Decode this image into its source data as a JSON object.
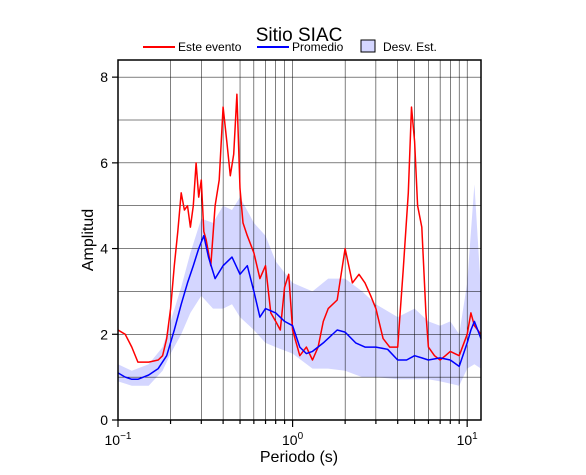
{
  "chart_data": {
    "type": "line",
    "title": "Sitio SIAC",
    "xlabel": "Periodo (s)",
    "ylabel": "Amplitud",
    "xscale": "log",
    "xlim": [
      0.1,
      12
    ],
    "ylim": [
      0,
      8.4
    ],
    "x_ticks": [
      {
        "value": 0.1,
        "base": "10",
        "exp": "−1"
      },
      {
        "value": 1,
        "base": "10",
        "exp": "0"
      },
      {
        "value": 10,
        "base": "10",
        "exp": "1"
      }
    ],
    "y_ticks": [
      0,
      2,
      4,
      6,
      8
    ],
    "grid": true,
    "legend_position": "top",
    "legend": [
      {
        "label": "Este evento",
        "color": "#ff0000",
        "kind": "line"
      },
      {
        "label": "Promedio",
        "color": "#0000ff",
        "kind": "line"
      },
      {
        "label": "Desv. Est.",
        "color": "#d4d6ff",
        "kind": "box"
      }
    ],
    "series": [
      {
        "name": "Este evento",
        "color": "#ff0000",
        "x": [
          0.1,
          0.11,
          0.12,
          0.13,
          0.15,
          0.17,
          0.18,
          0.19,
          0.2,
          0.21,
          0.22,
          0.23,
          0.24,
          0.25,
          0.26,
          0.27,
          0.28,
          0.29,
          0.3,
          0.31,
          0.32,
          0.34,
          0.36,
          0.38,
          0.4,
          0.42,
          0.44,
          0.46,
          0.48,
          0.5,
          0.52,
          0.55,
          0.6,
          0.65,
          0.7,
          0.75,
          0.8,
          0.85,
          0.9,
          0.95,
          1.0,
          1.1,
          1.2,
          1.3,
          1.4,
          1.5,
          1.6,
          1.8,
          2.0,
          2.2,
          2.4,
          2.6,
          2.8,
          3.0,
          3.3,
          3.6,
          4.0,
          4.3,
          4.6,
          4.8,
          5.0,
          5.2,
          5.5,
          5.8,
          6.0,
          6.5,
          7.0,
          7.5,
          8.0,
          9.0,
          10.0,
          10.5,
          11.0,
          12.0
        ],
        "values": [
          2.1,
          2.0,
          1.7,
          1.35,
          1.35,
          1.4,
          1.5,
          1.9,
          2.6,
          3.6,
          4.4,
          5.3,
          4.9,
          5.0,
          4.5,
          5.0,
          6.0,
          5.2,
          5.6,
          4.4,
          4.2,
          3.6,
          5.0,
          5.6,
          7.3,
          6.5,
          5.7,
          6.2,
          7.6,
          5.4,
          4.6,
          4.3,
          3.9,
          3.3,
          3.6,
          2.5,
          2.3,
          2.1,
          3.1,
          3.4,
          2.1,
          1.5,
          1.7,
          1.4,
          1.7,
          2.3,
          2.6,
          2.8,
          4.0,
          3.2,
          3.4,
          3.2,
          2.9,
          2.6,
          1.9,
          1.7,
          1.7,
          3.5,
          5.3,
          7.3,
          6.5,
          5.0,
          4.5,
          2.5,
          1.7,
          1.5,
          1.4,
          1.5,
          1.6,
          1.5,
          2.0,
          2.5,
          2.2,
          2.0
        ]
      },
      {
        "name": "Promedio",
        "color": "#0000ff",
        "x": [
          0.1,
          0.11,
          0.12,
          0.13,
          0.14,
          0.15,
          0.17,
          0.19,
          0.21,
          0.23,
          0.25,
          0.27,
          0.29,
          0.31,
          0.33,
          0.36,
          0.4,
          0.45,
          0.5,
          0.55,
          0.6,
          0.65,
          0.7,
          0.8,
          0.9,
          1.0,
          1.1,
          1.2,
          1.3,
          1.5,
          1.8,
          2.0,
          2.3,
          2.6,
          3.0,
          3.5,
          4.0,
          4.5,
          5.0,
          5.5,
          6.0,
          7.0,
          8.0,
          9.0,
          10.0,
          10.5,
          11.0,
          12.0
        ],
        "values": [
          1.1,
          1.0,
          0.95,
          0.95,
          1.0,
          1.05,
          1.2,
          1.5,
          2.1,
          2.7,
          3.2,
          3.6,
          4.0,
          4.3,
          3.8,
          3.3,
          3.6,
          3.8,
          3.4,
          3.6,
          3.0,
          2.4,
          2.6,
          2.5,
          2.3,
          2.2,
          1.7,
          1.55,
          1.6,
          1.8,
          2.1,
          2.05,
          1.8,
          1.7,
          1.7,
          1.65,
          1.4,
          1.4,
          1.5,
          1.45,
          1.4,
          1.45,
          1.4,
          1.25,
          1.8,
          2.1,
          2.3,
          1.9
        ]
      }
    ],
    "band": {
      "name": "Desv. Est.",
      "color": "#d4d6ff",
      "x": [
        0.1,
        0.12,
        0.15,
        0.18,
        0.2,
        0.23,
        0.26,
        0.3,
        0.35,
        0.4,
        0.45,
        0.5,
        0.6,
        0.7,
        0.8,
        1.0,
        1.3,
        1.6,
        2.0,
        2.5,
        3.0,
        4.0,
        5.0,
        6.0,
        7.0,
        8.0,
        9.0,
        10.0,
        11.0,
        12.0
      ],
      "upper": [
        1.3,
        1.15,
        1.3,
        1.7,
        2.3,
        3.1,
        3.9,
        4.7,
        4.6,
        5.0,
        4.9,
        5.2,
        4.6,
        4.3,
        3.7,
        3.2,
        3.0,
        3.3,
        3.3,
        3.0,
        2.7,
        2.4,
        2.6,
        2.3,
        2.2,
        2.3,
        2.0,
        3.2,
        5.5,
        3.0
      ],
      "lower": [
        0.9,
        0.8,
        0.8,
        1.15,
        1.55,
        2.0,
        2.5,
        2.9,
        2.6,
        2.6,
        2.7,
        2.4,
        2.1,
        1.8,
        1.7,
        1.55,
        1.2,
        1.2,
        1.15,
        1.0,
        1.0,
        0.95,
        0.95,
        0.95,
        0.9,
        0.85,
        0.8,
        1.2,
        1.3,
        1.2
      ]
    }
  }
}
